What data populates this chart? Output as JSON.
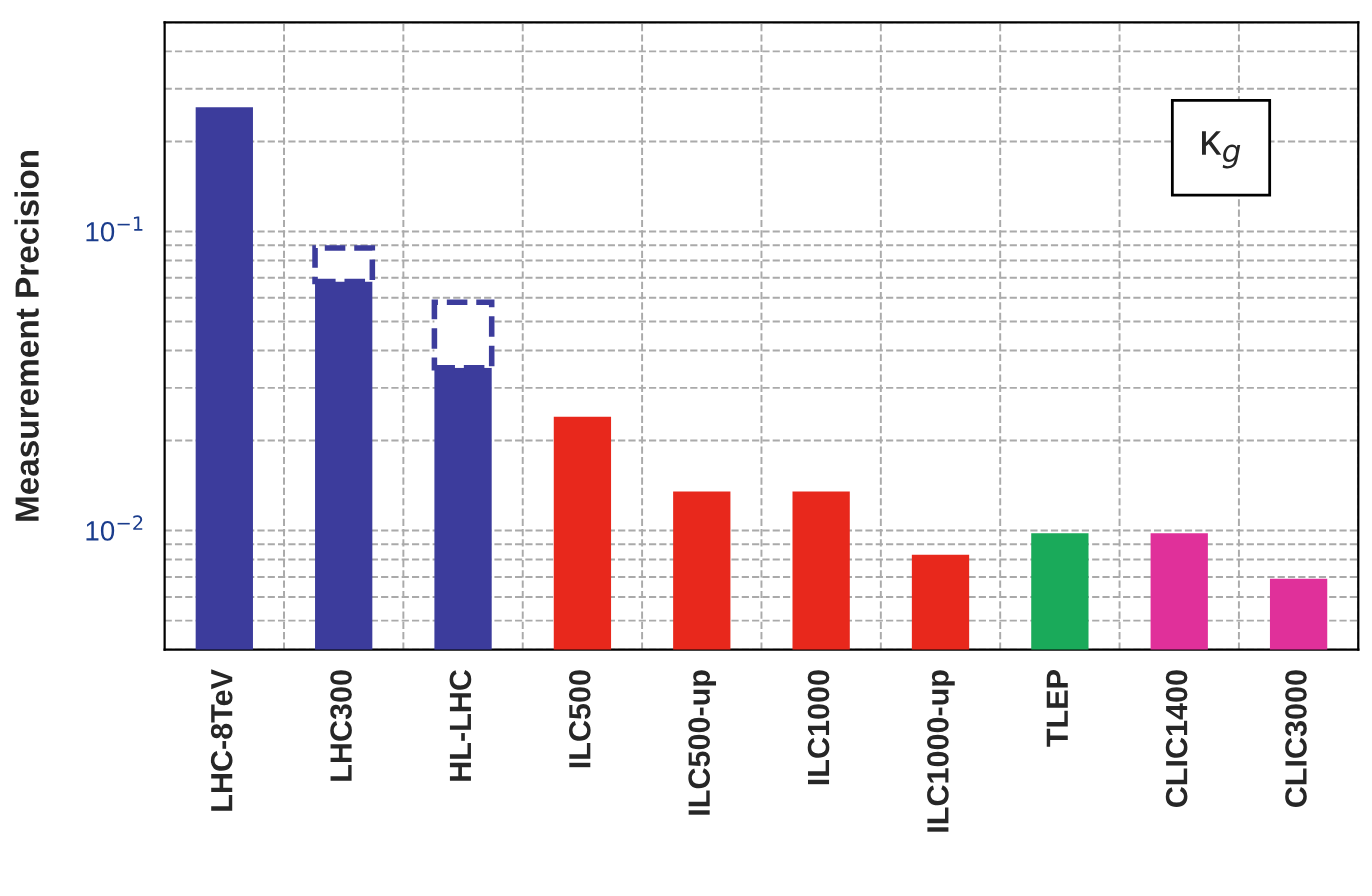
{
  "chart_data": {
    "type": "bar",
    "ylabel": "Measurement Precision",
    "categories": [
      "LHC-8TeV",
      "LHC300",
      "HL-LHC",
      "ILC500",
      "ILC500-up",
      "ILC1000",
      "ILC1000-up",
      "TLEP",
      "CLIC1400",
      "CLIC3000"
    ],
    "series": [
      {
        "colors": [
          "#3c3c9c",
          "#3c3c9c",
          "#3c3c9c",
          "#e8281c",
          "#e8281c",
          "#e8281c",
          "#e8281c",
          "#1aaa5a",
          "#e0309a",
          "#e0309a"
        ],
        "values": [
          0.26,
          0.068,
          0.035,
          0.024,
          0.0135,
          0.0135,
          0.0083,
          0.0098,
          0.0098,
          0.0069
        ],
        "line_style": "solid"
      },
      {
        "color": "#ffffff",
        "values": [
          null,
          0.02,
          0.023,
          null,
          null,
          null,
          null,
          null,
          null,
          null
        ],
        "line_style": "dashed"
      }
    ],
    "stacked": true,
    "log": true,
    "ylim": [
      0.004,
      0.5
    ],
    "yticks": [
      {
        "value": 0.01,
        "label": "10$^{−2}$"
      },
      {
        "value": 0.1,
        "label": "10$^{−1}$"
      }
    ],
    "grid": true,
    "annotations": [
      "κ$_{g}$"
    ]
  }
}
